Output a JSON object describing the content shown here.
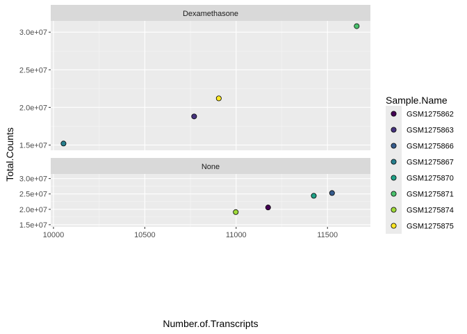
{
  "chart_data": {
    "type": "scatter",
    "xlabel": "Number.of.Transcripts",
    "ylabel": "Total.Counts",
    "xlim": [
      9985,
      11735
    ],
    "ylim": [
      14300000,
      31500000
    ],
    "x_ticks": [
      {
        "value": 10000,
        "label": "10000"
      },
      {
        "value": 10500,
        "label": "10500"
      },
      {
        "value": 11000,
        "label": "11000"
      },
      {
        "value": 11500,
        "label": "11500"
      }
    ],
    "y_ticks": [
      {
        "value": 15000000,
        "label": "1.5e+07"
      },
      {
        "value": 20000000,
        "label": "2.0e+07"
      },
      {
        "value": 25000000,
        "label": "2.5e+07"
      },
      {
        "value": 30000000,
        "label": "3.0e+07"
      }
    ],
    "legend": {
      "title": "Sample.Name",
      "position": "right",
      "entries": [
        {
          "name": "GSM1275862",
          "color": "#440154"
        },
        {
          "name": "GSM1275863",
          "color": "#46337E"
        },
        {
          "name": "GSM1275866",
          "color": "#365C8D"
        },
        {
          "name": "GSM1275867",
          "color": "#277F8E"
        },
        {
          "name": "GSM1275870",
          "color": "#1FA187"
        },
        {
          "name": "GSM1275871",
          "color": "#4AC16D"
        },
        {
          "name": "GSM1275874",
          "color": "#9FDA3A"
        },
        {
          "name": "GSM1275875",
          "color": "#FDE725"
        }
      ]
    },
    "facets": [
      {
        "label": "Dexamethasone",
        "points": [
          {
            "sample": "GSM1275867",
            "x": 10055,
            "y": 15200000
          },
          {
            "sample": "GSM1275863",
            "x": 10770,
            "y": 18800000
          },
          {
            "sample": "GSM1275875",
            "x": 10905,
            "y": 21200000
          },
          {
            "sample": "GSM1275871",
            "x": 11660,
            "y": 30800000
          }
        ]
      },
      {
        "label": "None",
        "points": [
          {
            "sample": "GSM1275874",
            "x": 10998,
            "y": 19100000
          },
          {
            "sample": "GSM1275862",
            "x": 11175,
            "y": 20600000
          },
          {
            "sample": "GSM1275870",
            "x": 11425,
            "y": 24400000
          },
          {
            "sample": "GSM1275866",
            "x": 11525,
            "y": 25300000
          }
        ]
      }
    ]
  }
}
